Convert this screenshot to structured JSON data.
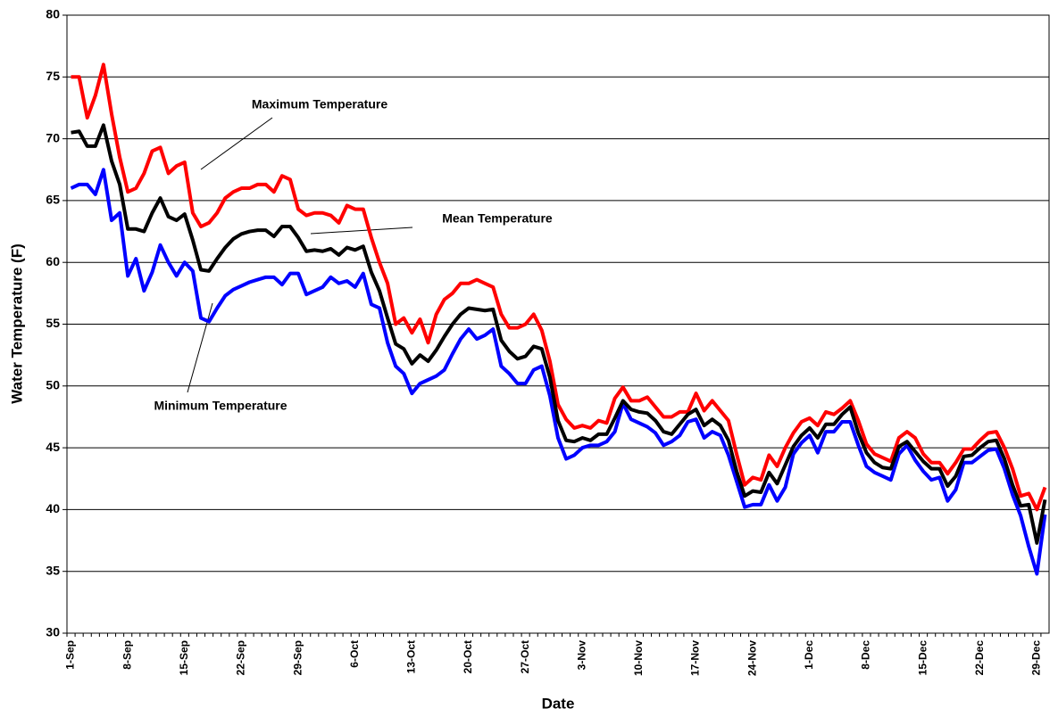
{
  "chart_data": {
    "type": "line",
    "x_label": "Date",
    "y_label": "Water Temperature (F)",
    "categories": [
      "1-Sep",
      null,
      null,
      null,
      null,
      null,
      null,
      "8-Sep",
      null,
      null,
      null,
      null,
      null,
      null,
      "15-Sep",
      null,
      null,
      null,
      null,
      null,
      null,
      "22-Sep",
      null,
      null,
      null,
      null,
      null,
      null,
      "29-Sep",
      null,
      null,
      null,
      null,
      null,
      null,
      "6-Oct",
      null,
      null,
      null,
      null,
      null,
      null,
      "13-Oct",
      null,
      null,
      null,
      null,
      null,
      null,
      "20-Oct",
      null,
      null,
      null,
      null,
      null,
      null,
      "27-Oct",
      null,
      null,
      null,
      null,
      null,
      null,
      "3-Nov",
      null,
      null,
      null,
      null,
      null,
      null,
      "10-Nov",
      null,
      null,
      null,
      null,
      null,
      null,
      "17-Nov",
      null,
      null,
      null,
      null,
      null,
      null,
      "24-Nov",
      null,
      null,
      null,
      null,
      null,
      null,
      "1-Dec",
      null,
      null,
      null,
      null,
      null,
      null,
      "8-Dec",
      null,
      null,
      null,
      null,
      null,
      null,
      "15-Dec",
      null,
      null,
      null,
      null,
      null,
      null,
      "22-Dec",
      null,
      null,
      null,
      null,
      null,
      null,
      "29-Dec",
      null
    ],
    "series": [
      {
        "name": "Maximum Temperature",
        "color": "#ff0000",
        "values": [
          75,
          75,
          71.7,
          73.5,
          76,
          72,
          68.5,
          65.7,
          66,
          67.2,
          69,
          69.3,
          67.2,
          67.8,
          68.1,
          64,
          62.9,
          63.2,
          64,
          65.2,
          65.7,
          66,
          66,
          66.3,
          66.3,
          65.7,
          67,
          66.7,
          64.3,
          63.8,
          64,
          64,
          63.8,
          63.2,
          64.6,
          64.3,
          64.3,
          62,
          60,
          58.3,
          55,
          55.5,
          54.3,
          55.4,
          53.5,
          55.8,
          57,
          57.5,
          58.3,
          58.3,
          58.6,
          58.3,
          58,
          55.8,
          54.7,
          54.7,
          55,
          55.8,
          54.5,
          52,
          48.5,
          47.3,
          46.6,
          46.8,
          46.6,
          47.2,
          47,
          49,
          49.9,
          48.8,
          48.8,
          49.1,
          48.3,
          47.5,
          47.5,
          47.9,
          47.9,
          49.4,
          48,
          48.8,
          48,
          47.2,
          44.5,
          42,
          42.6,
          42.4,
          44.4,
          43.5,
          45,
          46.2,
          47.1,
          47.4,
          46.8,
          47.9,
          47.7,
          48.2,
          48.8,
          47.2,
          45.3,
          44.5,
          44.2,
          43.9,
          45.8,
          46.3,
          45.8,
          44.5,
          43.8,
          43.8,
          42.9,
          43.8,
          44.9,
          44.9,
          45.6,
          46.2,
          46.3,
          45,
          43.3,
          41.1,
          41.3,
          40,
          41.8
        ]
      },
      {
        "name": "Mean Temperature",
        "color": "#000000",
        "values": [
          70.5,
          70.6,
          69.4,
          69.4,
          71.1,
          68.2,
          66.3,
          62.7,
          62.7,
          62.5,
          64,
          65.2,
          63.7,
          63.4,
          63.9,
          61.8,
          59.4,
          59.3,
          60.3,
          61.2,
          61.9,
          62.3,
          62.5,
          62.6,
          62.6,
          62.1,
          62.9,
          62.9,
          62,
          60.9,
          61,
          60.9,
          61.1,
          60.6,
          61.2,
          61,
          61.3,
          59.2,
          57.7,
          55.5,
          53.4,
          53,
          51.8,
          52.5,
          52,
          52.9,
          54,
          55,
          55.8,
          56.3,
          56.2,
          56.1,
          56.2,
          53.7,
          52.8,
          52.2,
          52.4,
          53.2,
          53,
          50.7,
          47.2,
          45.6,
          45.5,
          45.8,
          45.6,
          46.1,
          46.1,
          47.4,
          48.8,
          48.1,
          47.9,
          47.8,
          47.2,
          46.3,
          46.1,
          46.9,
          47.7,
          48.1,
          46.8,
          47.3,
          46.8,
          45.6,
          43.1,
          41.1,
          41.5,
          41.4,
          43,
          42.1,
          43.6,
          45.1,
          46,
          46.6,
          45.8,
          46.9,
          46.9,
          47.7,
          48.3,
          46.2,
          44.6,
          43.8,
          43.4,
          43.3,
          45.1,
          45.5,
          44.7,
          43.9,
          43.3,
          43.3,
          41.9,
          42.7,
          44.3,
          44.4,
          45,
          45.5,
          45.6,
          44.1,
          42,
          40.3,
          40.4,
          37.3,
          40.8
        ]
      },
      {
        "name": "Minimum Temperature",
        "color": "#0000ff",
        "values": [
          66,
          66.3,
          66.3,
          65.5,
          67.5,
          63.4,
          64,
          58.9,
          60.3,
          57.7,
          59.2,
          61.4,
          60,
          58.9,
          60,
          59.3,
          55.5,
          55.2,
          56.3,
          57.3,
          57.8,
          58.1,
          58.4,
          58.6,
          58.8,
          58.8,
          58.2,
          59.1,
          59.1,
          57.4,
          57.7,
          58,
          58.8,
          58.3,
          58.5,
          58,
          59.1,
          56.6,
          56.3,
          53.5,
          51.6,
          51,
          49.4,
          50.2,
          50.5,
          50.8,
          51.3,
          52.6,
          53.8,
          54.6,
          53.8,
          54.1,
          54.6,
          51.6,
          51,
          50.2,
          50.2,
          51.3,
          51.6,
          49.2,
          45.8,
          44.1,
          44.4,
          45,
          45.2,
          45.2,
          45.5,
          46.3,
          48.6,
          47.3,
          47,
          46.7,
          46.2,
          45.2,
          45.5,
          46,
          47.1,
          47.3,
          45.8,
          46.3,
          46,
          44.4,
          42.3,
          40.2,
          40.4,
          40.4,
          42,
          40.7,
          41.8,
          44.5,
          45.4,
          46,
          44.6,
          46.3,
          46.3,
          47.1,
          47.1,
          45.2,
          43.5,
          43,
          42.7,
          42.4,
          44.5,
          45.2,
          44,
          43.1,
          42.4,
          42.6,
          40.7,
          41.6,
          43.8,
          43.8,
          44.3,
          44.8,
          44.9,
          43.3,
          41.2,
          39.5,
          37,
          34.8,
          39.6
        ]
      }
    ],
    "annotations": [
      "Maximum Temperature",
      "Mean Temperature",
      "Minimum Temperature"
    ],
    "ylim": [
      30,
      80
    ],
    "yticks": [
      30,
      35,
      40,
      45,
      50,
      55,
      60,
      65,
      70,
      75,
      80
    ],
    "grid": true
  }
}
